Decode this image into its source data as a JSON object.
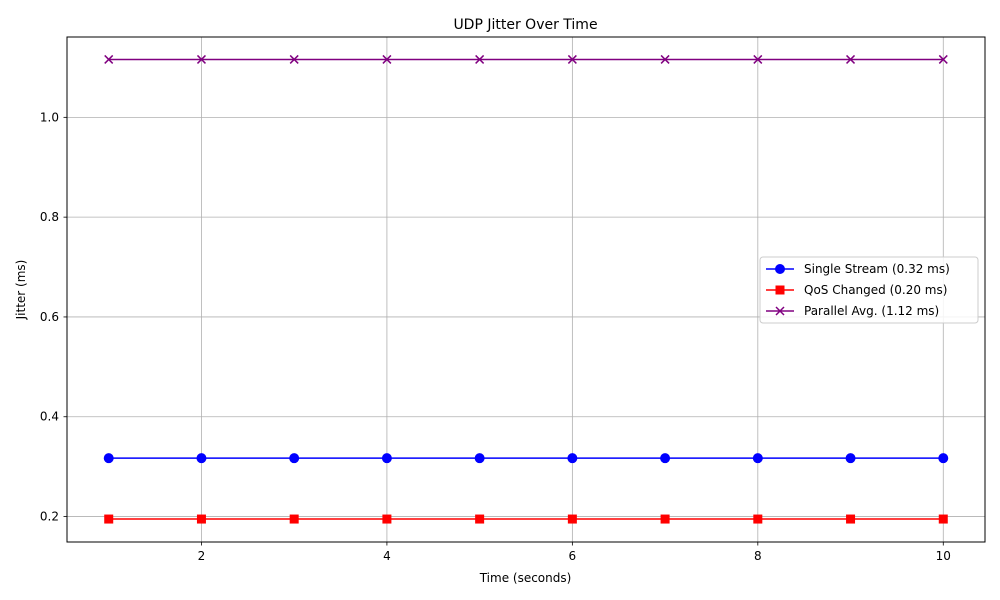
{
  "chart_data": {
    "type": "line",
    "title": "UDP Jitter Over Time",
    "xlabel": "Time (seconds)",
    "ylabel": "Jitter (ms)",
    "xlim": [
      0.55,
      10.45
    ],
    "ylim": [
      0.149,
      1.161
    ],
    "xticks": [
      2,
      4,
      6,
      8,
      10
    ],
    "xtick_labels": [
      "2",
      "4",
      "6",
      "8",
      "10"
    ],
    "yticks": [
      0.2,
      0.4,
      0.6,
      0.8,
      1.0
    ],
    "ytick_labels": [
      "0.2",
      "0.4",
      "0.6",
      "0.8",
      "1.0"
    ],
    "grid": true,
    "legend_position": "center-right",
    "x": [
      1,
      2,
      3,
      4,
      5,
      6,
      7,
      8,
      9,
      10
    ],
    "series": [
      {
        "name": "Single Stream (0.32 ms)",
        "values": [
          0.317,
          0.317,
          0.317,
          0.317,
          0.317,
          0.317,
          0.317,
          0.317,
          0.317,
          0.317
        ],
        "color": "#0000ff",
        "marker": "circle"
      },
      {
        "name": "QoS Changed (0.20 ms)",
        "values": [
          0.195,
          0.195,
          0.195,
          0.195,
          0.195,
          0.195,
          0.195,
          0.195,
          0.195,
          0.195
        ],
        "color": "#ff0000",
        "marker": "square"
      },
      {
        "name": "Parallel Avg. (1.12 ms)",
        "values": [
          1.116,
          1.116,
          1.116,
          1.116,
          1.116,
          1.116,
          1.116,
          1.116,
          1.116,
          1.116
        ],
        "color": "#800080",
        "marker": "x"
      }
    ]
  }
}
